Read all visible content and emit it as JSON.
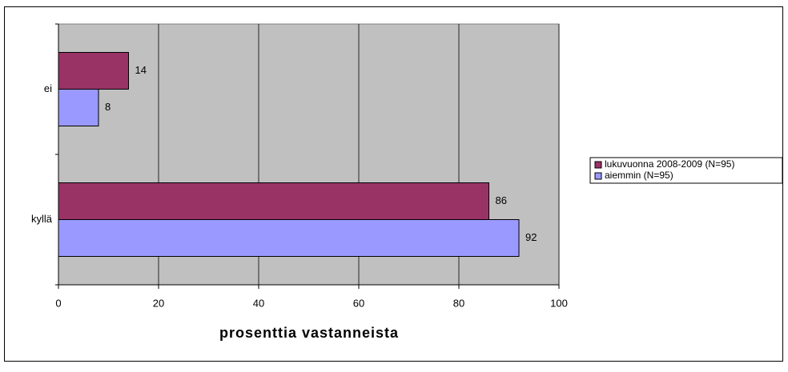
{
  "chart_data": {
    "type": "hbar",
    "categories": [
      "ei",
      "kyllä"
    ],
    "series": [
      {
        "name": "lukuvuonna 2008-2009 (N=95)",
        "color": "#993366",
        "values": [
          14,
          86
        ]
      },
      {
        "name": "aiemmin (N=95)",
        "color": "#9999ff",
        "values": [
          8,
          92
        ]
      }
    ],
    "xlim": [
      0,
      100
    ],
    "xticks": [
      0,
      20,
      40,
      60,
      80,
      100
    ],
    "xlabel": "prosenttia vastanneista",
    "grid": true,
    "legend": "right"
  }
}
